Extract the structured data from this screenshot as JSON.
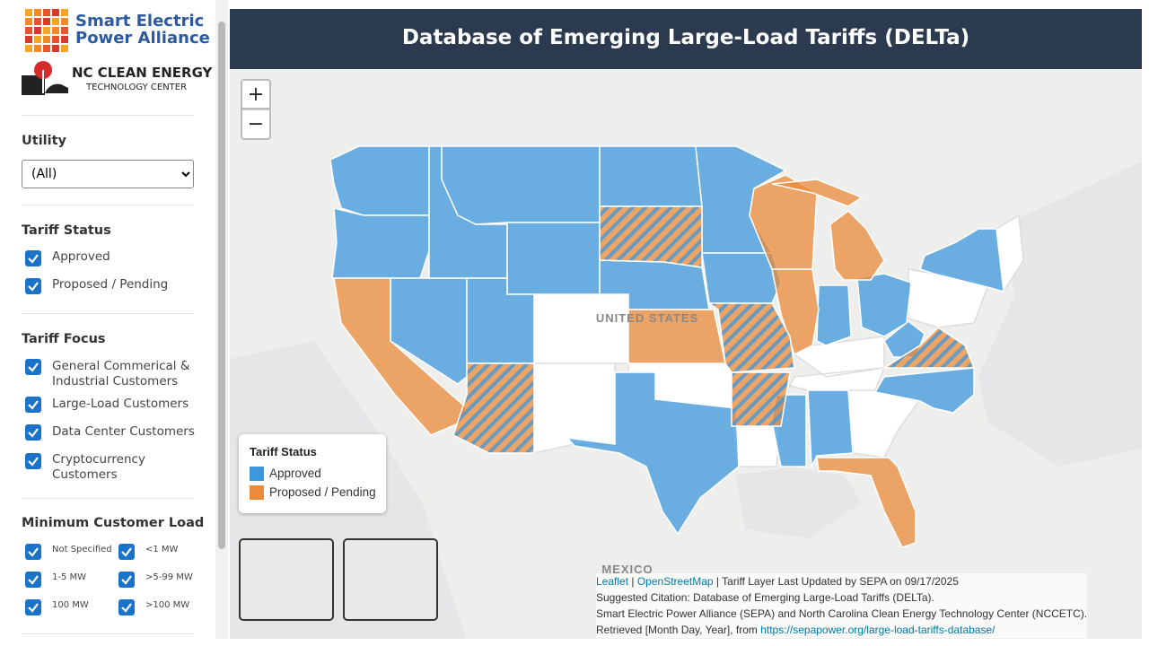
{
  "sidebar": {
    "logos": {
      "sepa_line1": "Smart Electric",
      "sepa_line2": "Power Alliance",
      "nc_line1": "NC CLEAN ENERGY",
      "nc_line2": "TECHNOLOGY CENTER"
    },
    "utility": {
      "label": "Utility",
      "selected": "(All)"
    },
    "tariff_status": {
      "label": "Tariff Status",
      "options": [
        "Approved",
        "Proposed / Pending"
      ]
    },
    "tariff_focus": {
      "label": "Tariff Focus",
      "options": [
        "General Commerical & Industrial Customers",
        "Large-Load Customers",
        "Data Center Customers",
        "Cryptocurrency Customers"
      ]
    },
    "min_load": {
      "label": "Minimum Customer Load",
      "options": [
        "Not Specified",
        "<1 MW",
        "1-5 MW",
        ">5-99 MW",
        "100 MW",
        ">100 MW"
      ]
    }
  },
  "header": {
    "title": "Database of Emerging Large-Load Tariffs (DELTa)"
  },
  "map": {
    "zoom_in": "+",
    "zoom_out": "−",
    "country_label": "UNITED STATES",
    "neighbor_label": "MEXICO",
    "legend": {
      "title": "Tariff Status",
      "items": [
        {
          "label": "Approved",
          "color": "#3c97dd"
        },
        {
          "label": "Proposed / Pending",
          "color": "#ea8a3a"
        }
      ]
    }
  },
  "attribution": {
    "leaflet": "Leaflet",
    "separator": "|",
    "osm": "OpenStreetMap",
    "updated": "| Tariff Layer Last Updated by SEPA on 09/17/2025",
    "citation": "Suggested Citation: Database of Emerging Large-Load Tariffs (DELTa).",
    "authors": "Smart Electric Power Alliance (SEPA) and North Carolina Clean Energy Technology Center (NCCETC).",
    "retrieved": "Retrieved [Month Day, Year], from",
    "url": "https://sepapower.org/large-load-tariffs-database/"
  }
}
